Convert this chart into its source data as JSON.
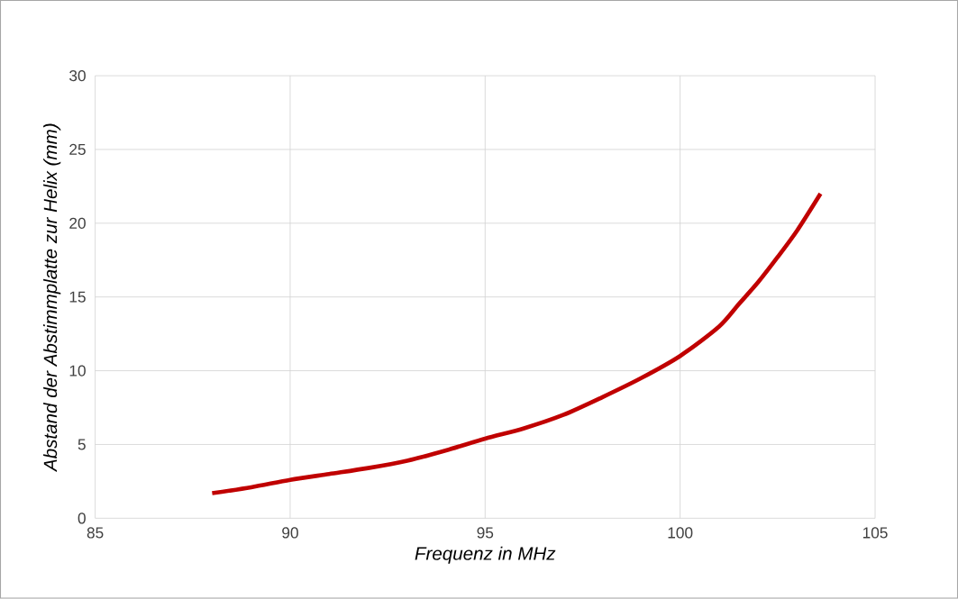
{
  "chart_data": {
    "type": "line",
    "xlabel": "Frequenz in MHz",
    "ylabel": "Abstand der Abstimmplatte zur Helix (mm)",
    "x": [
      88,
      89,
      90,
      91,
      92,
      93,
      94,
      95,
      96,
      97,
      98,
      99,
      100,
      101,
      101.5,
      102,
      102.5,
      103,
      103.6
    ],
    "series": [
      {
        "color": "#c00000",
        "values": [
          1.7,
          2.1,
          2.6,
          3.0,
          3.4,
          3.9,
          4.6,
          5.4,
          6.1,
          7.0,
          8.2,
          9.5,
          11.0,
          13.0,
          14.5,
          16.0,
          17.7,
          19.5,
          22.0
        ]
      }
    ],
    "xlim": [
      85,
      105
    ],
    "ylim": [
      0,
      30
    ],
    "xticks": [
      85,
      90,
      95,
      100,
      105
    ],
    "yticks": [
      0,
      5,
      10,
      15,
      20,
      25,
      30
    ],
    "grid": true,
    "marker": "none",
    "line_style": "solid"
  }
}
